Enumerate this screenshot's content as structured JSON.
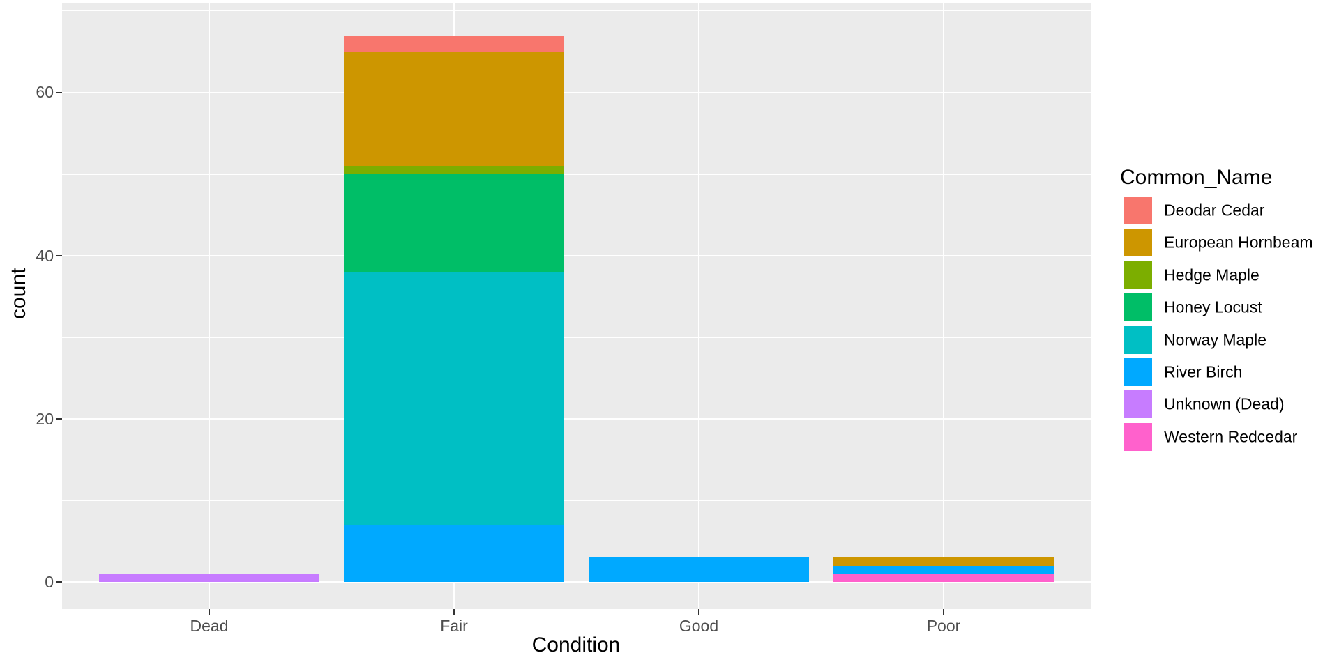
{
  "chart_data": {
    "type": "bar",
    "stacked": true,
    "xlabel": "Condition",
    "ylabel": "count",
    "legend_title": "Common_Name",
    "legend_position": "right",
    "categories": [
      "Dead",
      "Fair",
      "Good",
      "Poor"
    ],
    "series": [
      {
        "name": "Deodar Cedar",
        "color": "#F8766D",
        "values": [
          0,
          2,
          0,
          0
        ]
      },
      {
        "name": "European Hornbeam",
        "color": "#CD9600",
        "values": [
          0,
          14,
          0,
          1
        ]
      },
      {
        "name": "Hedge Maple",
        "color": "#7CAE00",
        "values": [
          0,
          1,
          0,
          0
        ]
      },
      {
        "name": "Honey Locust",
        "color": "#00BE67",
        "values": [
          0,
          12,
          0,
          0
        ]
      },
      {
        "name": "Norway Maple",
        "color": "#00BFC4",
        "values": [
          0,
          31,
          0,
          0
        ]
      },
      {
        "name": "River Birch",
        "color": "#00A9FF",
        "values": [
          0,
          7,
          3,
          1
        ]
      },
      {
        "name": "Unknown (Dead)",
        "color": "#C77CFF",
        "values": [
          1,
          0,
          0,
          0
        ]
      },
      {
        "name": "Western Redcedar",
        "color": "#FF61CC",
        "values": [
          0,
          0,
          0,
          1
        ]
      }
    ],
    "stack_order_note": "first series renders on top of stack",
    "y_ticks": [
      0,
      20,
      40,
      60
    ],
    "y_minor_ticks": [
      10,
      30,
      50,
      70
    ],
    "ylim": [
      -3.4,
      71.2
    ],
    "grid": true,
    "panel_bg": "#EBEBEB",
    "grid_color": "#FFFFFF",
    "tick_label_color": "#4D4D4D"
  }
}
